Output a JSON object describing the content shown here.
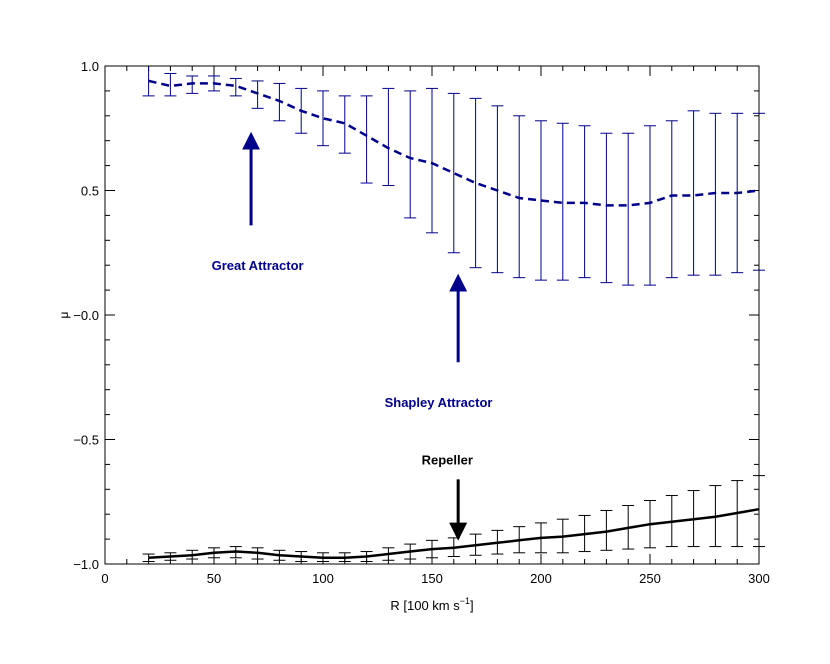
{
  "chart_data": {
    "type": "line",
    "title": "",
    "xlabel": "R [100 km s",
    "xlabel_sup": "−1",
    "xlabel_close": "]",
    "ylabel": "μ",
    "xlim": [
      0,
      300
    ],
    "ylim": [
      -1.0,
      1.0
    ],
    "grid": false,
    "xticks": [
      "0",
      "50",
      "100",
      "150",
      "200",
      "250",
      "300"
    ],
    "yticks": [
      "−1.0",
      "−0.5",
      "−0.0",
      "0.5",
      "1.0"
    ],
    "series": [
      {
        "name": "Attractor",
        "style": "dashed",
        "color": "#00008b",
        "x": [
          20,
          30,
          40,
          50,
          60,
          70,
          80,
          90,
          100,
          110,
          120,
          130,
          140,
          150,
          160,
          170,
          180,
          190,
          200,
          210,
          220,
          230,
          240,
          250,
          260,
          270,
          280,
          290,
          300
        ],
        "y": [
          0.94,
          0.92,
          0.93,
          0.93,
          0.92,
          0.89,
          0.86,
          0.82,
          0.79,
          0.77,
          0.72,
          0.67,
          0.63,
          0.61,
          0.57,
          0.53,
          0.5,
          0.47,
          0.46,
          0.45,
          0.45,
          0.44,
          0.44,
          0.45,
          0.48,
          0.48,
          0.49,
          0.49,
          0.5
        ],
        "err_low": [
          0.88,
          0.88,
          0.89,
          0.9,
          0.88,
          0.83,
          0.78,
          0.73,
          0.68,
          0.65,
          0.53,
          0.52,
          0.39,
          0.33,
          0.25,
          0.19,
          0.17,
          0.15,
          0.14,
          0.14,
          0.15,
          0.13,
          0.12,
          0.12,
          0.15,
          0.16,
          0.16,
          0.17,
          0.18
        ],
        "err_high": [
          1.0,
          0.97,
          0.96,
          0.96,
          0.95,
          0.94,
          0.93,
          0.91,
          0.9,
          0.88,
          0.88,
          0.91,
          0.9,
          0.91,
          0.89,
          0.87,
          0.84,
          0.8,
          0.78,
          0.77,
          0.76,
          0.73,
          0.73,
          0.76,
          0.78,
          0.82,
          0.81,
          0.81,
          0.81
        ]
      },
      {
        "name": "Repeller",
        "style": "solid",
        "color": "#000000",
        "x": [
          20,
          30,
          40,
          50,
          60,
          70,
          80,
          90,
          100,
          110,
          120,
          130,
          140,
          150,
          160,
          170,
          180,
          190,
          200,
          210,
          220,
          230,
          240,
          250,
          260,
          270,
          280,
          290,
          300
        ],
        "y": [
          -0.975,
          -0.97,
          -0.965,
          -0.955,
          -0.95,
          -0.955,
          -0.965,
          -0.97,
          -0.975,
          -0.975,
          -0.97,
          -0.96,
          -0.95,
          -0.94,
          -0.935,
          -0.925,
          -0.915,
          -0.905,
          -0.895,
          -0.89,
          -0.88,
          -0.87,
          -0.855,
          -0.84,
          -0.83,
          -0.82,
          -0.81,
          -0.795,
          -0.78
        ],
        "err_low": [
          -0.99,
          -0.985,
          -0.98,
          -0.975,
          -0.975,
          -0.98,
          -0.985,
          -0.99,
          -0.99,
          -0.99,
          -0.99,
          -0.985,
          -0.98,
          -0.975,
          -0.97,
          -0.965,
          -0.96,
          -0.955,
          -0.955,
          -0.955,
          -0.95,
          -0.945,
          -0.94,
          -0.935,
          -0.93,
          -0.93,
          -0.93,
          -0.93,
          -0.93
        ],
        "err_high": [
          -0.96,
          -0.955,
          -0.945,
          -0.935,
          -0.93,
          -0.935,
          -0.945,
          -0.95,
          -0.955,
          -0.955,
          -0.95,
          -0.935,
          -0.92,
          -0.905,
          -0.895,
          -0.88,
          -0.865,
          -0.85,
          -0.835,
          -0.82,
          -0.805,
          -0.785,
          -0.765,
          -0.745,
          -0.725,
          -0.705,
          -0.685,
          -0.665,
          -0.645
        ]
      }
    ],
    "annotations": [
      {
        "text": "Great Attractor",
        "color": "#00008b",
        "arrow_from": [
          67,
          0.36
        ],
        "arrow_to": [
          67,
          0.7
        ],
        "label_at": [
          70,
          0.2
        ]
      },
      {
        "text": "Shapley Attractor",
        "color": "#00008b",
        "arrow_from": [
          162,
          -0.19
        ],
        "arrow_to": [
          162,
          0.13
        ],
        "label_at": [
          153,
          -0.35
        ]
      },
      {
        "text": "Repeller",
        "color": "#000000",
        "arrow_from": [
          162,
          -0.66
        ],
        "arrow_to": [
          162,
          -0.87
        ],
        "label_at": [
          157,
          -0.58
        ]
      }
    ]
  }
}
